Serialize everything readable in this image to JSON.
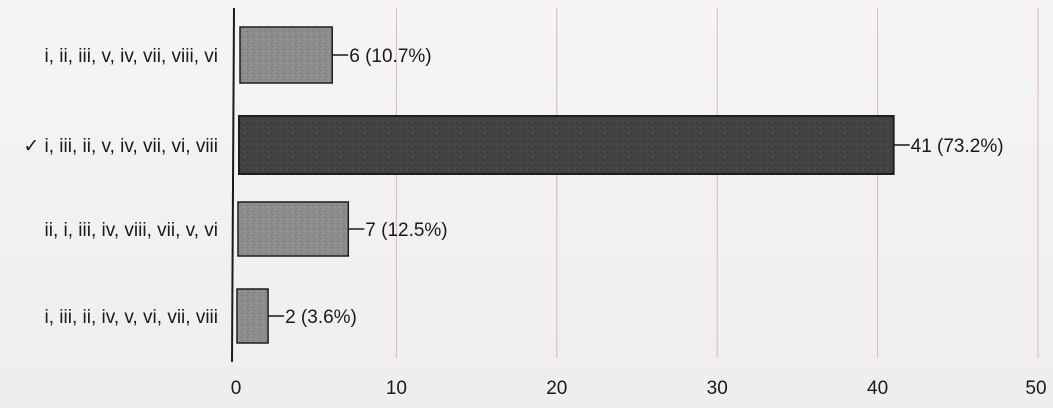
{
  "chart_data": {
    "type": "bar",
    "orientation": "horizontal",
    "categories": [
      "i, ii, iii, v, iv, vii, viii, vi",
      "✓ i, iii, ii, v, iv, vii, vi, viii",
      "ii, i, iii, iv, viii, vii, v, vi",
      "i, iii, ii, iv, v, vi, vii, viii"
    ],
    "values": [
      6,
      41,
      7,
      2
    ],
    "data_labels": [
      "6 (10.7%)",
      "41 (73.2%)",
      "7 (12.5%)",
      "2 (3.6%)"
    ],
    "highlighted_index": 1,
    "xlim": [
      0,
      50
    ],
    "xticks": [
      0,
      10,
      20,
      30,
      40,
      50
    ],
    "grid": true,
    "colors": {
      "bar": "#8a8a8a",
      "bar_highlight": "#3e3e3e",
      "bar_edge": "#1e1e1e",
      "grid": "#d9b8b8",
      "axis": "#1a1a1a"
    }
  }
}
